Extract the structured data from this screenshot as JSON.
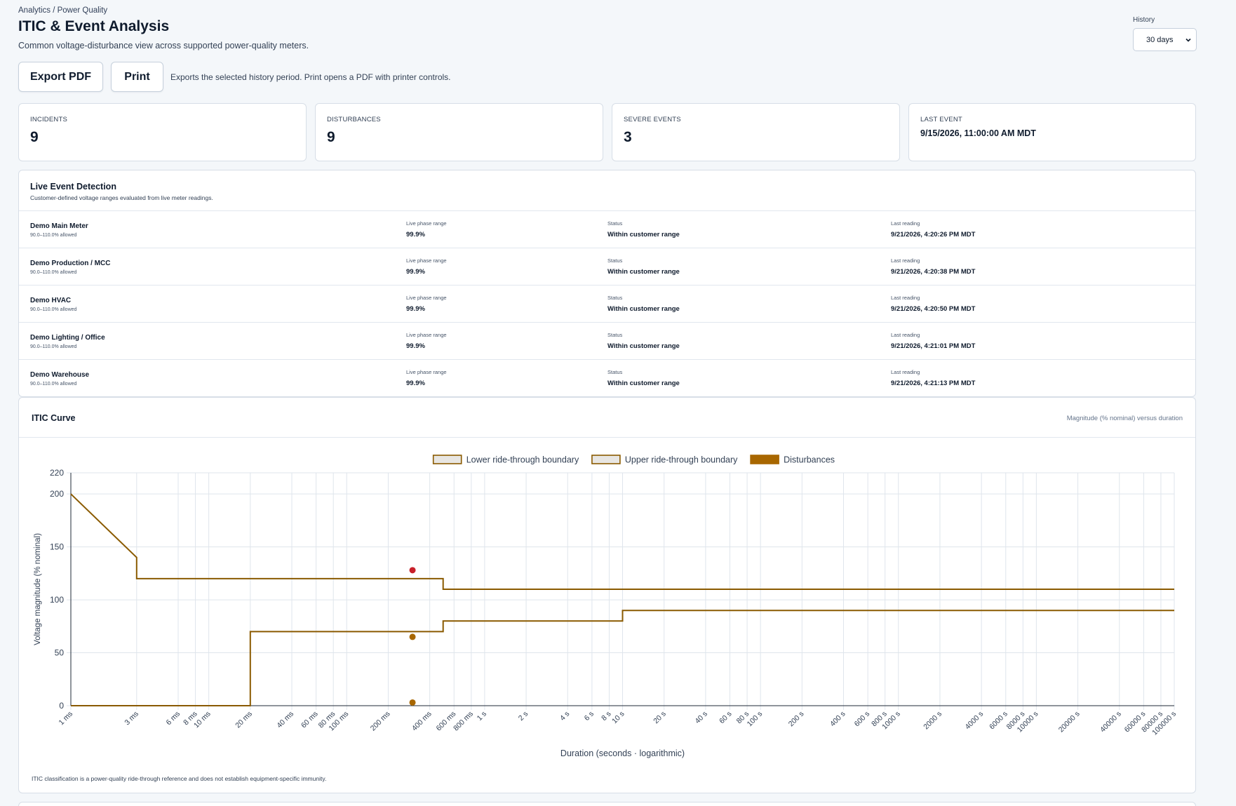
{
  "breadcrumb": "Analytics / Power Quality",
  "page": {
    "title": "ITIC & Event Analysis",
    "subtitle": "Common voltage-disturbance view across supported power-quality meters."
  },
  "history": {
    "label": "History",
    "selected": "30 days"
  },
  "actions": {
    "export_label": "Export PDF",
    "print_label": "Print",
    "note": "Exports the selected history period. Print opens a PDF with printer controls."
  },
  "stats": [
    {
      "label": "INCIDENTS",
      "value": "9"
    },
    {
      "label": "DISTURBANCES",
      "value": "9"
    },
    {
      "label": "SEVERE EVENTS",
      "value": "3"
    },
    {
      "label": "LAST EVENT",
      "value": "9/15/2026, 11:00:00 AM MDT"
    }
  ],
  "live": {
    "title": "Live Event Detection",
    "subtitle": "Customer-defined voltage ranges evaluated from live meter readings.",
    "col_phase": "Live phase range",
    "col_status": "Status",
    "col_reading": "Last reading",
    "meters": [
      {
        "name": "Demo Main Meter",
        "allowed": "90.0–110.0% allowed",
        "phase": "99.9%",
        "status": "Within customer range",
        "reading": "9/21/2026, 4:20:26 PM MDT"
      },
      {
        "name": "Demo Production / MCC",
        "allowed": "90.0–110.0% allowed",
        "phase": "99.9%",
        "status": "Within customer range",
        "reading": "9/21/2026, 4:20:38 PM MDT"
      },
      {
        "name": "Demo HVAC",
        "allowed": "90.0–110.0% allowed",
        "phase": "99.9%",
        "status": "Within customer range",
        "reading": "9/21/2026, 4:20:50 PM MDT"
      },
      {
        "name": "Demo Lighting / Office",
        "allowed": "90.0–110.0% allowed",
        "phase": "99.9%",
        "status": "Within customer range",
        "reading": "9/21/2026, 4:21:01 PM MDT"
      },
      {
        "name": "Demo Warehouse",
        "allowed": "90.0–110.0% allowed",
        "phase": "99.9%",
        "status": "Within customer range",
        "reading": "9/21/2026, 4:21:13 PM MDT"
      }
    ]
  },
  "chart_card": {
    "title": "ITIC Curve",
    "subtitle": "Magnitude (% nominal) versus duration",
    "footnote": "ITIC classification is a power-quality ride-through reference and does not establish equipment-specific immunity."
  },
  "colors": {
    "curve": "#8a5a00",
    "legend_fill": "#e8e6e2",
    "disturbance": "#a86700",
    "severe": "#c8202a",
    "grid": "#dfe5ec",
    "axis": "#1f2937"
  },
  "chart_data": {
    "type": "scatter",
    "xscale": "log",
    "xlabel": "Duration (seconds · logarithmic)",
    "ylabel": "Voltage magnitude (% nominal)",
    "xlim": [
      0.001,
      100000
    ],
    "ylim": [
      0,
      220
    ],
    "yticks": [
      0,
      50,
      100,
      150,
      200,
      220
    ],
    "xticks": [
      {
        "v": 0.001,
        "label": "1 ms"
      },
      {
        "v": 0.003,
        "label": "3 ms"
      },
      {
        "v": 0.006,
        "label": "6 ms"
      },
      {
        "v": 0.008,
        "label": "8 ms"
      },
      {
        "v": 0.01,
        "label": "10 ms"
      },
      {
        "v": 0.02,
        "label": "20 ms"
      },
      {
        "v": 0.04,
        "label": "40 ms"
      },
      {
        "v": 0.06,
        "label": "60 ms"
      },
      {
        "v": 0.08,
        "label": "80 ms"
      },
      {
        "v": 0.1,
        "label": "100 ms"
      },
      {
        "v": 0.2,
        "label": "200 ms"
      },
      {
        "v": 0.4,
        "label": "400 ms"
      },
      {
        "v": 0.6,
        "label": "600 ms"
      },
      {
        "v": 0.8,
        "label": "800 ms"
      },
      {
        "v": 1,
        "label": "1 s"
      },
      {
        "v": 2,
        "label": "2 s"
      },
      {
        "v": 4,
        "label": "4 s"
      },
      {
        "v": 6,
        "label": "6 s"
      },
      {
        "v": 8,
        "label": "8 s"
      },
      {
        "v": 10,
        "label": "10 s"
      },
      {
        "v": 20,
        "label": "20 s"
      },
      {
        "v": 40,
        "label": "40 s"
      },
      {
        "v": 60,
        "label": "60 s"
      },
      {
        "v": 80,
        "label": "80 s"
      },
      {
        "v": 100,
        "label": "100 s"
      },
      {
        "v": 200,
        "label": "200 s"
      },
      {
        "v": 400,
        "label": "400 s"
      },
      {
        "v": 600,
        "label": "600 s"
      },
      {
        "v": 800,
        "label": "800 s"
      },
      {
        "v": 1000,
        "label": "1000 s"
      },
      {
        "v": 2000,
        "label": "2000 s"
      },
      {
        "v": 4000,
        "label": "4000 s"
      },
      {
        "v": 6000,
        "label": "6000 s"
      },
      {
        "v": 8000,
        "label": "8000 s"
      },
      {
        "v": 10000,
        "label": "10000 s"
      },
      {
        "v": 20000,
        "label": "20000 s"
      },
      {
        "v": 40000,
        "label": "40000 s"
      },
      {
        "v": 60000,
        "label": "60000 s"
      },
      {
        "v": 80000,
        "label": "80000 s"
      },
      {
        "v": 100000,
        "label": "100000 s"
      }
    ],
    "legend": [
      {
        "name": "Lower ride-through boundary",
        "kind": "box"
      },
      {
        "name": "Upper ride-through boundary",
        "kind": "box"
      },
      {
        "name": "Disturbances",
        "kind": "filled"
      }
    ],
    "legend_position": "top-center",
    "grid": true,
    "series": [
      {
        "name": "Upper ride-through boundary",
        "kind": "line",
        "points": [
          [
            0.001,
            200
          ],
          [
            0.003,
            140
          ],
          [
            0.003,
            120
          ],
          [
            0.5,
            120
          ],
          [
            0.5,
            110
          ],
          [
            100000,
            110
          ]
        ]
      },
      {
        "name": "Lower ride-through boundary",
        "kind": "line",
        "points": [
          [
            0.001,
            0
          ],
          [
            0.02,
            0
          ],
          [
            0.02,
            70
          ],
          [
            0.5,
            70
          ],
          [
            0.5,
            80
          ],
          [
            10,
            80
          ],
          [
            10,
            90
          ],
          [
            100000,
            90
          ]
        ]
      },
      {
        "name": "Disturbances",
        "kind": "scatter",
        "points": [
          {
            "x": 0.3,
            "y": 128,
            "severity": "severe"
          },
          {
            "x": 0.3,
            "y": 65,
            "severity": "normal"
          },
          {
            "x": 0.3,
            "y": 3,
            "severity": "normal"
          }
        ]
      }
    ]
  }
}
